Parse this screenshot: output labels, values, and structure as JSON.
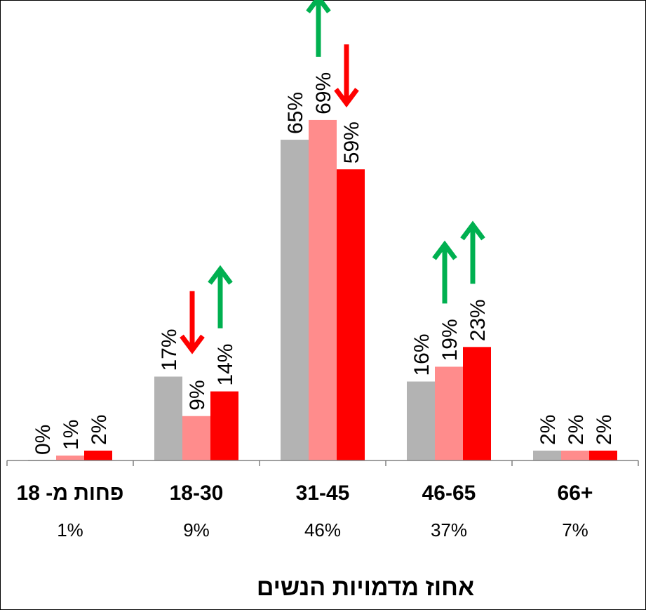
{
  "chart_data": {
    "type": "bar",
    "title": "",
    "xlabel": "אחוז מדמויות הנשים",
    "ylabel": "",
    "ylim": [
      0,
      72
    ],
    "grid": false,
    "legend": "none",
    "categories": [
      "פחות מ- 18",
      "18-30",
      "31-45",
      "46-65",
      "+66"
    ],
    "category_shares": [
      "1%",
      "9%",
      "46%",
      "37%",
      "7%"
    ],
    "series": [
      {
        "color": "#b3b3b3",
        "values": [
          0,
          17,
          65,
          16,
          2
        ],
        "labels": [
          "0%",
          "17%",
          "65%",
          "16%",
          "2%"
        ]
      },
      {
        "color": "#ff8c8c",
        "values": [
          1,
          9,
          69,
          19,
          2
        ],
        "labels": [
          "1%",
          "9%",
          "69%",
          "19%",
          "2%"
        ]
      },
      {
        "color": "#ff0000",
        "values": [
          2,
          14,
          59,
          23,
          2
        ],
        "labels": [
          "2%",
          "14%",
          "59%",
          "23%",
          "2%"
        ]
      }
    ],
    "arrows": [
      {
        "category": 1,
        "series": 1,
        "direction": "down",
        "color": "#ff0000"
      },
      {
        "category": 1,
        "series": 2,
        "direction": "up",
        "color": "#00b050"
      },
      {
        "category": 2,
        "series": 1,
        "direction": "up",
        "color": "#00b050"
      },
      {
        "category": 2,
        "series": 2,
        "direction": "down",
        "color": "#ff0000"
      },
      {
        "category": 3,
        "series": 1,
        "direction": "up",
        "color": "#00b050"
      },
      {
        "category": 3,
        "series": 2,
        "direction": "up",
        "color": "#00b050"
      }
    ]
  }
}
